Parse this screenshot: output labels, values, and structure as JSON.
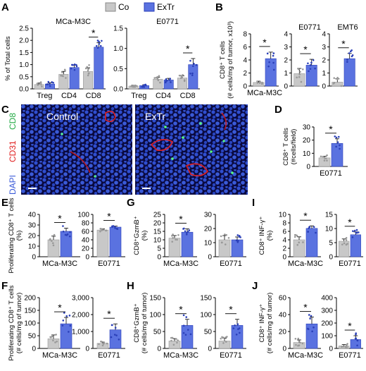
{
  "legend": {
    "items": [
      {
        "label": "Co",
        "color": "#c8c8c8"
      },
      {
        "label": "ExTr",
        "color": "#5a72e0"
      }
    ]
  },
  "colors": {
    "control": "#c8c8c8",
    "extr": "#5a72e0",
    "control_dot": "#999999",
    "extr_dot": "#2a3fb8",
    "sig": "#000000"
  },
  "micrographs": {
    "channels": [
      {
        "label": "CD8",
        "color": "#33cc55"
      },
      {
        "label": "CD31",
        "color": "#e02020"
      },
      {
        "label": "DAPI",
        "color": "#3a5ad8"
      }
    ],
    "control_label": "Control",
    "extr_label": "ExTr"
  },
  "chart_data": [
    {
      "panel": "A",
      "type": "bar",
      "subtitle": "MCa-M3C",
      "ylabel": "% of Total cells",
      "ylim": [
        0,
        2.5
      ],
      "yticks": [
        "0.0",
        "0.5",
        "1.0",
        "1.5",
        "2.0",
        "2.5"
      ],
      "categories": [
        "Treg",
        "CD4",
        "CD8"
      ],
      "series": [
        {
          "name": "Co",
          "values": [
            0.18,
            0.6,
            0.72
          ],
          "err": [
            0.06,
            0.12,
            0.15
          ]
        },
        {
          "name": "ExTr",
          "values": [
            0.2,
            0.88,
            1.72
          ],
          "err": [
            0.05,
            0.1,
            0.18
          ]
        }
      ],
      "sig": [
        {
          "category": "CD8",
          "label": "*"
        }
      ]
    },
    {
      "panel": "A",
      "type": "bar",
      "subtitle": "E0771",
      "ylabel": "",
      "ylim": [
        0,
        1.5
      ],
      "yticks": [
        "0.0",
        "0.5",
        "1.0",
        "1.5"
      ],
      "categories": [
        "Treg",
        "CD4",
        "CD8"
      ],
      "series": [
        {
          "name": "Co",
          "values": [
            0.07,
            0.24,
            0.27
          ],
          "err": [
            0.02,
            0.05,
            0.05
          ]
        },
        {
          "name": "ExTr",
          "values": [
            0.08,
            0.22,
            0.6
          ],
          "err": [
            0.02,
            0.04,
            0.15
          ]
        }
      ],
      "sig": [
        {
          "category": "CD8",
          "label": "*"
        }
      ]
    },
    {
      "panel": "B",
      "type": "bar",
      "subtitle": "",
      "ylabel": "CD8⁺ T cells",
      "ylabel2": "(# cells/mg of tumor, x10³)",
      "ylim": [
        0,
        8
      ],
      "yticks": [
        "0",
        "2",
        "4",
        "6",
        "8"
      ],
      "categories": [
        "MCa-M3C"
      ],
      "series": [
        {
          "name": "Co",
          "values": [
            0.55
          ],
          "err": [
            0.2
          ]
        },
        {
          "name": "ExTr",
          "values": [
            4.2
          ],
          "err": [
            1.0
          ]
        }
      ],
      "sig": [
        {
          "category": "MCa-M3C",
          "label": "*"
        }
      ]
    },
    {
      "panel": "B",
      "type": "bar",
      "subtitle": "E0771",
      "ylabel": "",
      "ylim": [
        0,
        4
      ],
      "yticks": [
        "0",
        "1",
        "2",
        "3",
        "4"
      ],
      "categories": [
        ""
      ],
      "series": [
        {
          "name": "Co",
          "values": [
            0.95
          ],
          "err": [
            0.4
          ]
        },
        {
          "name": "ExTr",
          "values": [
            1.6
          ],
          "err": [
            0.45
          ]
        }
      ],
      "sig": [
        {
          "category": "",
          "label": "*"
        }
      ]
    },
    {
      "panel": "B",
      "type": "bar",
      "subtitle": "EMT6",
      "ylabel": "",
      "ylim": [
        0,
        4
      ],
      "yticks": [
        "0",
        "1",
        "2",
        "3",
        "4"
      ],
      "categories": [
        ""
      ],
      "series": [
        {
          "name": "Co",
          "values": [
            0.3
          ],
          "err": [
            0.25
          ]
        },
        {
          "name": "ExTr",
          "values": [
            2.1
          ],
          "err": [
            0.4
          ]
        }
      ],
      "sig": [
        {
          "category": "",
          "label": "*"
        }
      ]
    },
    {
      "panel": "D",
      "type": "bar",
      "subtitle": "",
      "ylabel": "CD8⁺ T cells",
      "ylabel2": "(#cells/field)",
      "ylim": [
        0,
        30
      ],
      "yticks": [
        "0",
        "10",
        "20",
        "30"
      ],
      "categories": [
        "E0771"
      ],
      "series": [
        {
          "name": "Co",
          "values": [
            6.5
          ],
          "err": [
            1.2
          ]
        },
        {
          "name": "ExTr",
          "values": [
            17.5
          ],
          "err": [
            3.5
          ]
        }
      ],
      "sig": [
        {
          "category": "E0771",
          "label": "*"
        }
      ]
    },
    {
      "panel": "E",
      "type": "bar",
      "subtitle": "",
      "ylabel": "Proliferating CD8⁺ T cells",
      "ylabel2": "(%)",
      "ylim": [
        0,
        40
      ],
      "yticks": [
        "0",
        "10",
        "20",
        "30",
        "40"
      ],
      "categories": [
        "MCa-M3C"
      ],
      "series": [
        {
          "name": "Co",
          "values": [
            16
          ],
          "err": [
            3.5
          ]
        },
        {
          "name": "ExTr",
          "values": [
            24
          ],
          "err": [
            3
          ]
        }
      ],
      "sig": [
        {
          "category": "MCa-M3C",
          "label": "*"
        }
      ]
    },
    {
      "panel": "E",
      "type": "bar",
      "subtitle": "",
      "ylabel": "",
      "ylim": [
        0,
        100
      ],
      "yticks": [
        "0",
        "20",
        "40",
        "60",
        "80",
        "100"
      ],
      "categories": [
        "E0771"
      ],
      "series": [
        {
          "name": "Co",
          "values": [
            63
          ],
          "err": [
            3
          ]
        },
        {
          "name": "ExTr",
          "values": [
            70
          ],
          "err": [
            2.5
          ]
        }
      ],
      "sig": [
        {
          "category": "E0771",
          "label": "*"
        }
      ]
    },
    {
      "panel": "F",
      "type": "bar",
      "subtitle": "",
      "ylabel": "Proliferating CD8⁺ T cells",
      "ylabel2": "(# cells/mg of tumor)",
      "ylim": [
        0,
        200
      ],
      "yticks": [
        "0",
        "50",
        "100",
        "150",
        "200"
      ],
      "categories": [
        "MCa-M3C"
      ],
      "series": [
        {
          "name": "Co",
          "values": [
            38
          ],
          "err": [
            15
          ]
        },
        {
          "name": "ExTr",
          "values": [
            97
          ],
          "err": [
            25
          ]
        }
      ],
      "sig": [
        {
          "category": "MCa-M3C",
          "label": "*"
        }
      ]
    },
    {
      "panel": "F",
      "type": "bar",
      "subtitle": "",
      "ylabel": "",
      "ylim": [
        0,
        3000
      ],
      "yticks": [
        "0",
        "1,000",
        "2,000",
        "3,000"
      ],
      "categories": [
        "E0771"
      ],
      "series": [
        {
          "name": "Co",
          "values": [
            300
          ],
          "err": [
            80
          ]
        },
        {
          "name": "ExTr",
          "values": [
            1100
          ],
          "err": [
            350
          ]
        }
      ],
      "sig": [
        {
          "category": "E0771",
          "label": "*"
        }
      ]
    },
    {
      "panel": "G",
      "type": "bar",
      "subtitle": "",
      "ylabel": "CD8⁺GzmB⁺",
      "ylabel2": "(%)",
      "ylim": [
        0,
        25
      ],
      "yticks": [
        "0",
        "5",
        "10",
        "15",
        "20",
        "25"
      ],
      "categories": [
        "MCa-M3C"
      ],
      "series": [
        {
          "name": "Co",
          "values": [
            11
          ],
          "err": [
            1.5
          ]
        },
        {
          "name": "ExTr",
          "values": [
            14.5
          ],
          "err": [
            2
          ]
        }
      ],
      "sig": [
        {
          "category": "MCa-M3C",
          "label": "*"
        }
      ]
    },
    {
      "panel": "G",
      "type": "bar",
      "subtitle": "",
      "ylabel": "",
      "ylim": [
        0,
        30
      ],
      "yticks": [
        "0",
        "10",
        "20",
        "30"
      ],
      "categories": [
        "E0771"
      ],
      "series": [
        {
          "name": "Co",
          "values": [
            12
          ],
          "err": [
            3
          ]
        },
        {
          "name": "ExTr",
          "values": [
            12
          ],
          "err": [
            2
          ]
        }
      ],
      "sig": []
    },
    {
      "panel": "H",
      "type": "bar",
      "subtitle": "",
      "ylabel": "CD8⁺GzmB⁺",
      "ylabel2": "(# cells/mg of tumor)",
      "ylim": [
        0,
        150
      ],
      "yticks": [
        "0",
        "50",
        "100",
        "150"
      ],
      "categories": [
        "MCa-M3C"
      ],
      "series": [
        {
          "name": "Co",
          "values": [
            22
          ],
          "err": [
            7
          ]
        },
        {
          "name": "ExTr",
          "values": [
            68
          ],
          "err": [
            18
          ]
        }
      ],
      "sig": [
        {
          "category": "MCa-M3C",
          "label": "*"
        }
      ]
    },
    {
      "panel": "H",
      "type": "bar",
      "subtitle": "",
      "ylabel": "",
      "ylim": [
        0,
        150
      ],
      "yticks": [
        "0",
        "50",
        "100",
        "150"
      ],
      "categories": [
        "E0771"
      ],
      "series": [
        {
          "name": "Co",
          "values": [
            22
          ],
          "err": [
            8
          ]
        },
        {
          "name": "ExTr",
          "values": [
            68
          ],
          "err": [
            18
          ]
        }
      ],
      "sig": [
        {
          "category": "E0771",
          "label": "*"
        }
      ]
    },
    {
      "panel": "I",
      "type": "bar",
      "subtitle": "",
      "ylabel": "CD8⁺ INF-γ⁺",
      "ylabel2": "(%)",
      "ylim": [
        0,
        10
      ],
      "yticks": [
        "0",
        "2",
        "4",
        "6",
        "8",
        "10"
      ],
      "categories": [
        "MCa-M3C"
      ],
      "series": [
        {
          "name": "Co",
          "values": [
            4
          ],
          "err": [
            0.7
          ]
        },
        {
          "name": "ExTr",
          "values": [
            6.7
          ],
          "err": [
            0.6
          ]
        }
      ],
      "sig": [
        {
          "category": "MCa-M3C",
          "label": "*"
        }
      ]
    },
    {
      "panel": "I",
      "type": "bar",
      "subtitle": "",
      "ylabel": "",
      "ylim": [
        0,
        15
      ],
      "yticks": [
        "0",
        "5",
        "10",
        "15"
      ],
      "categories": [
        "E0771"
      ],
      "series": [
        {
          "name": "Co",
          "values": [
            5.5
          ],
          "err": [
            0.8
          ]
        },
        {
          "name": "ExTr",
          "values": [
            7.8
          ],
          "err": [
            1
          ]
        }
      ],
      "sig": [
        {
          "category": "E0771",
          "label": "*"
        }
      ]
    },
    {
      "panel": "J",
      "type": "bar",
      "subtitle": "",
      "ylabel": "CD8⁺ INF-γ⁺",
      "ylabel2": "(# cells/mg of tumor)",
      "ylim": [
        0,
        60
      ],
      "yticks": [
        "0",
        "20",
        "40",
        "60"
      ],
      "categories": [
        "MCa-M3C"
      ],
      "series": [
        {
          "name": "Co",
          "values": [
            7
          ],
          "err": [
            3
          ]
        },
        {
          "name": "ExTr",
          "values": [
            29
          ],
          "err": [
            8
          ]
        }
      ],
      "sig": [
        {
          "category": "MCa-M3C",
          "label": "*"
        }
      ]
    },
    {
      "panel": "J",
      "type": "bar",
      "subtitle": "",
      "ylabel": "",
      "ylim": [
        0,
        400
      ],
      "yticks": [
        "0",
        "100",
        "200",
        "300",
        "400"
      ],
      "categories": [
        "E0771"
      ],
      "series": [
        {
          "name": "Co",
          "values": [
            20
          ],
          "err": [
            10
          ]
        },
        {
          "name": "ExTr",
          "values": [
            70
          ],
          "err": [
            30
          ]
        }
      ],
      "sig": [
        {
          "category": "E0771",
          "label": "*"
        }
      ]
    }
  ]
}
